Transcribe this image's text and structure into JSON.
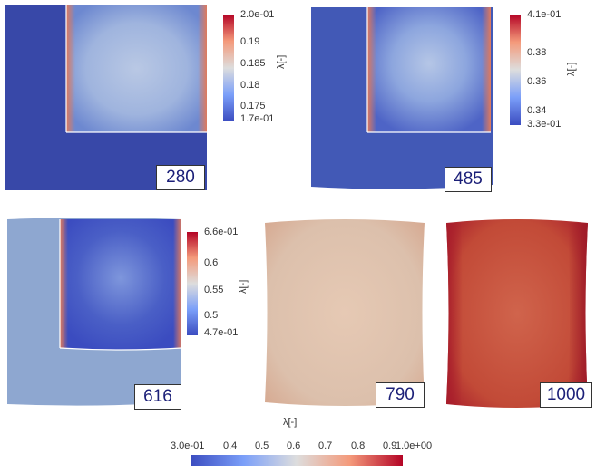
{
  "panels": [
    {
      "step": "280",
      "colorbar": {
        "title": "λ[-]",
        "ticks": [
          "2.0e-01",
          "0.19",
          "0.185",
          "0.18",
          "0.175",
          "1.7e-01"
        ]
      }
    },
    {
      "step": "485",
      "colorbar": {
        "title": "λ[-]",
        "ticks": [
          "4.1e-01",
          "0.38",
          "0.36",
          "0.34",
          "3.3e-01"
        ]
      }
    },
    {
      "step": "616",
      "colorbar": {
        "title": "λ[-]",
        "ticks": [
          "6.6e-01",
          "0.6",
          "0.55",
          "0.5",
          "4.7e-01"
        ]
      }
    },
    {
      "step": "790"
    },
    {
      "step": "1000"
    }
  ],
  "bottom_colorbar": {
    "title": "λ[-]",
    "ticks": [
      "3.0e-01",
      "0.4",
      "0.5",
      "0.6",
      "0.7",
      "0.8",
      "0.9",
      "1.0e+00"
    ]
  },
  "colors": {
    "cold": "#3b4cc0",
    "neutral": "#dddddd",
    "hot": "#b40426",
    "panel1_bg": "#3848a8",
    "panel2_bg": "#4259b6",
    "panel3_bg": "#8ea7d0",
    "panel4_fill": "#e0c3ae",
    "panel5_fill": "#c4503c"
  }
}
